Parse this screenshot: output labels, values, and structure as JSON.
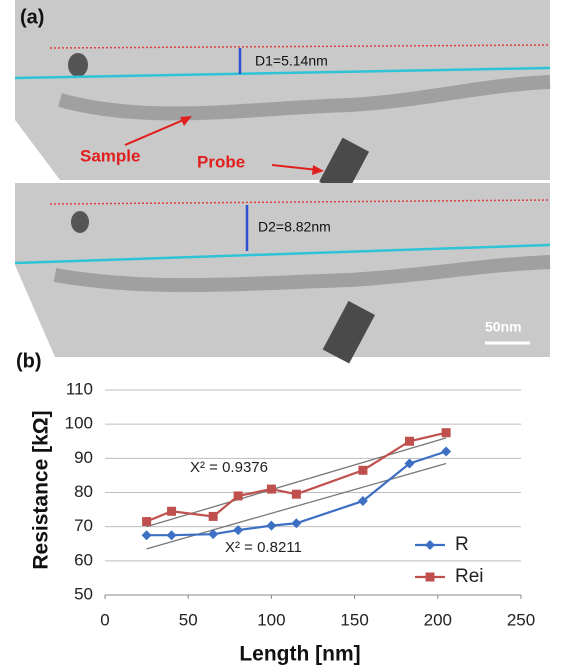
{
  "panel_a": {
    "label": "(a)",
    "d1": "D1=5.14nm",
    "d2": "D2=8.82nm",
    "sample": "Sample",
    "probe": "Probe",
    "scale_bar": "50nm"
  },
  "chart_data": {
    "type": "line",
    "panel_label": "(b)",
    "xlabel": "Length [nm]",
    "ylabel": "Resistance [kΩ]",
    "xlim": [
      0,
      250
    ],
    "xticks": [
      0,
      50,
      100,
      150,
      200,
      250
    ],
    "ylim": [
      50,
      110
    ],
    "yticks": [
      50,
      60,
      70,
      80,
      90,
      100,
      110
    ],
    "grid": true,
    "x": [
      25,
      40,
      65,
      80,
      100,
      115,
      155,
      183,
      205
    ],
    "series": [
      {
        "name": "R",
        "color": "#3d6fc4",
        "marker": "diamond",
        "values": [
          67.5,
          67.5,
          67.8,
          69,
          70.3,
          71,
          77.5,
          88.5,
          92
        ]
      },
      {
        "name": "Rei",
        "color": "#c0504d",
        "marker": "square",
        "values": [
          71.5,
          74.5,
          73,
          79,
          81,
          79.5,
          86.5,
          95,
          97.5
        ]
      }
    ],
    "trendlines": [
      {
        "x": [
          25,
          205
        ],
        "values": [
          70,
          96
        ],
        "label": "X² = 0.9376"
      },
      {
        "x": [
          25,
          205
        ],
        "values": [
          63.5,
          88.5
        ],
        "label": "X² = 0.8211"
      }
    ]
  }
}
